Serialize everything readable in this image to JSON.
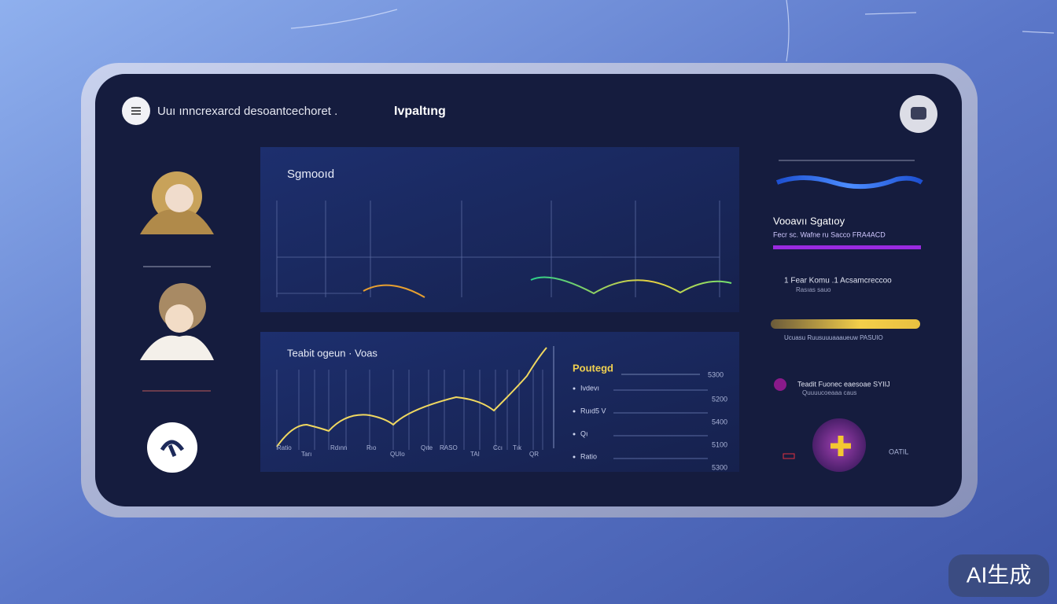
{
  "header": {
    "title": "Uuı ınncrexarcd desoantcechoret .",
    "nav": "Ivpaltıng"
  },
  "panels": [
    {
      "title": "Sgmooıd"
    },
    {
      "title": "Teabit ogeun · Voas",
      "x_labels": [
        "Ratio",
        "Tarı",
        "Rdınn",
        "Rıo",
        "QUIo",
        "Qıte",
        "RASO",
        "TAI",
        "Ccı",
        "Tık",
        "QR"
      ],
      "legend_title": "Poutegd",
      "legend_top_value": "5300",
      "legend": [
        {
          "label": "Ivdevı",
          "value": "5200"
        },
        {
          "label": "Ruıd5 V",
          "value": "5400"
        },
        {
          "label": "Qı",
          "value": "5100"
        },
        {
          "label": "Ratio",
          "value": "5300"
        }
      ]
    }
  ],
  "sidebar": {
    "title": "Vooavıı  Sgatıoy",
    "subtitle": "Fecr sc. Wafne ru Sacco FRA4ACD",
    "item": "1 Fear Komu .1 Acsamcreccoo",
    "item_sub": "Rasıas sauo",
    "bar_caption": "Ucuasu Ruusuuuaaaueuw PASUIO",
    "note": "Teadit Fuonec eaesoae SYIIJ",
    "note_sub": "Quuuucoeaaa caus",
    "action_label": "OATIL"
  },
  "watermark": "AI生成"
}
